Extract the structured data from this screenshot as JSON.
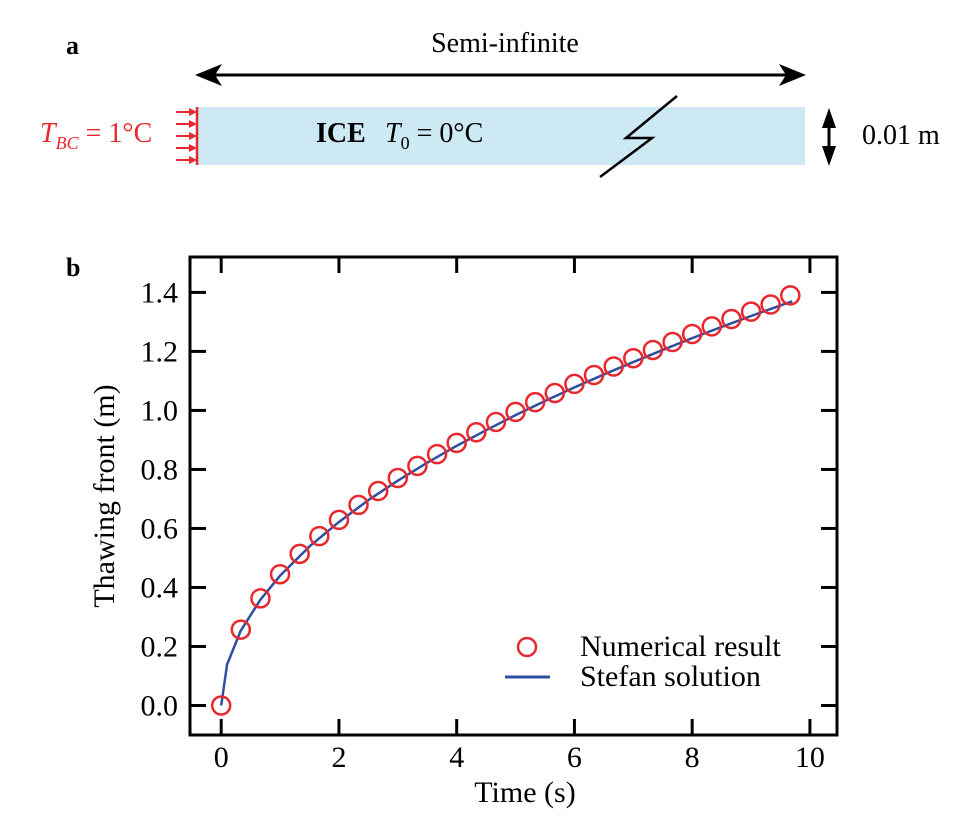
{
  "panel_a": {
    "label": "a",
    "span_label": "Semi-infinite",
    "bc_label_T": "T",
    "bc_label_sub": "BC",
    "bc_label_value": " = 1°C",
    "ice_label": "ICE",
    "t0_label_T": "T",
    "t0_label_sub": "0",
    "t0_label_value": " = 0°C",
    "thickness_label": "0.01 m",
    "colors": {
      "ice": "#cde9f4",
      "boundary": "#e8282e",
      "arrows": "#000000"
    }
  },
  "chart_data": {
    "panel_label": "b",
    "type": "line",
    "xlabel": "Time (s)",
    "ylabel": "Thawing front (m)",
    "xlim": [
      -0.53,
      10.46
    ],
    "ylim": [
      -0.1,
      1.52
    ],
    "xticks": [
      0,
      2,
      4,
      6,
      8,
      10
    ],
    "xtick_labels": [
      "0",
      "2",
      "4",
      "6",
      "8",
      "10"
    ],
    "yticks": [
      0.0,
      0.2,
      0.4,
      0.6,
      0.8,
      1.0,
      1.2,
      1.4
    ],
    "ytick_labels": [
      "0.0",
      "0.2",
      "0.4",
      "0.6",
      "0.8",
      "1.0",
      "1.2",
      "1.4"
    ],
    "grid": false,
    "legend_position": "bottom-right",
    "series": [
      {
        "name": "Numerical result",
        "kind": "scatter",
        "marker": "open-circle",
        "color": "#e8282e",
        "x": [
          0,
          0.333,
          0.667,
          1,
          1.333,
          1.667,
          2,
          2.333,
          2.667,
          3,
          3.333,
          3.667,
          4,
          4.333,
          4.667,
          5,
          5.333,
          5.667,
          6,
          6.333,
          6.667,
          7,
          7.333,
          7.667,
          8,
          8.333,
          8.667,
          9,
          9.333,
          9.667
        ],
        "y": [
          0,
          0.257,
          0.363,
          0.445,
          0.514,
          0.574,
          0.629,
          0.68,
          0.727,
          0.771,
          0.812,
          0.852,
          0.89,
          0.926,
          0.961,
          0.995,
          1.028,
          1.059,
          1.09,
          1.12,
          1.149,
          1.177,
          1.205,
          1.232,
          1.259,
          1.285,
          1.31,
          1.335,
          1.359,
          1.39
        ]
      },
      {
        "name": "Stefan solution",
        "kind": "line",
        "color": "#2e4ea0",
        "x": [
          0,
          0.1,
          0.333,
          0.667,
          1,
          1.5,
          2,
          2.5,
          3,
          3.5,
          4,
          4.5,
          5,
          5.5,
          6,
          6.5,
          7,
          7.5,
          8,
          8.5,
          9,
          9.5,
          9.7
        ],
        "y": [
          0,
          0.139,
          0.254,
          0.359,
          0.44,
          0.539,
          0.622,
          0.696,
          0.762,
          0.823,
          0.88,
          0.933,
          0.984,
          1.032,
          1.078,
          1.122,
          1.164,
          1.205,
          1.245,
          1.283,
          1.32,
          1.356,
          1.37
        ]
      }
    ]
  }
}
